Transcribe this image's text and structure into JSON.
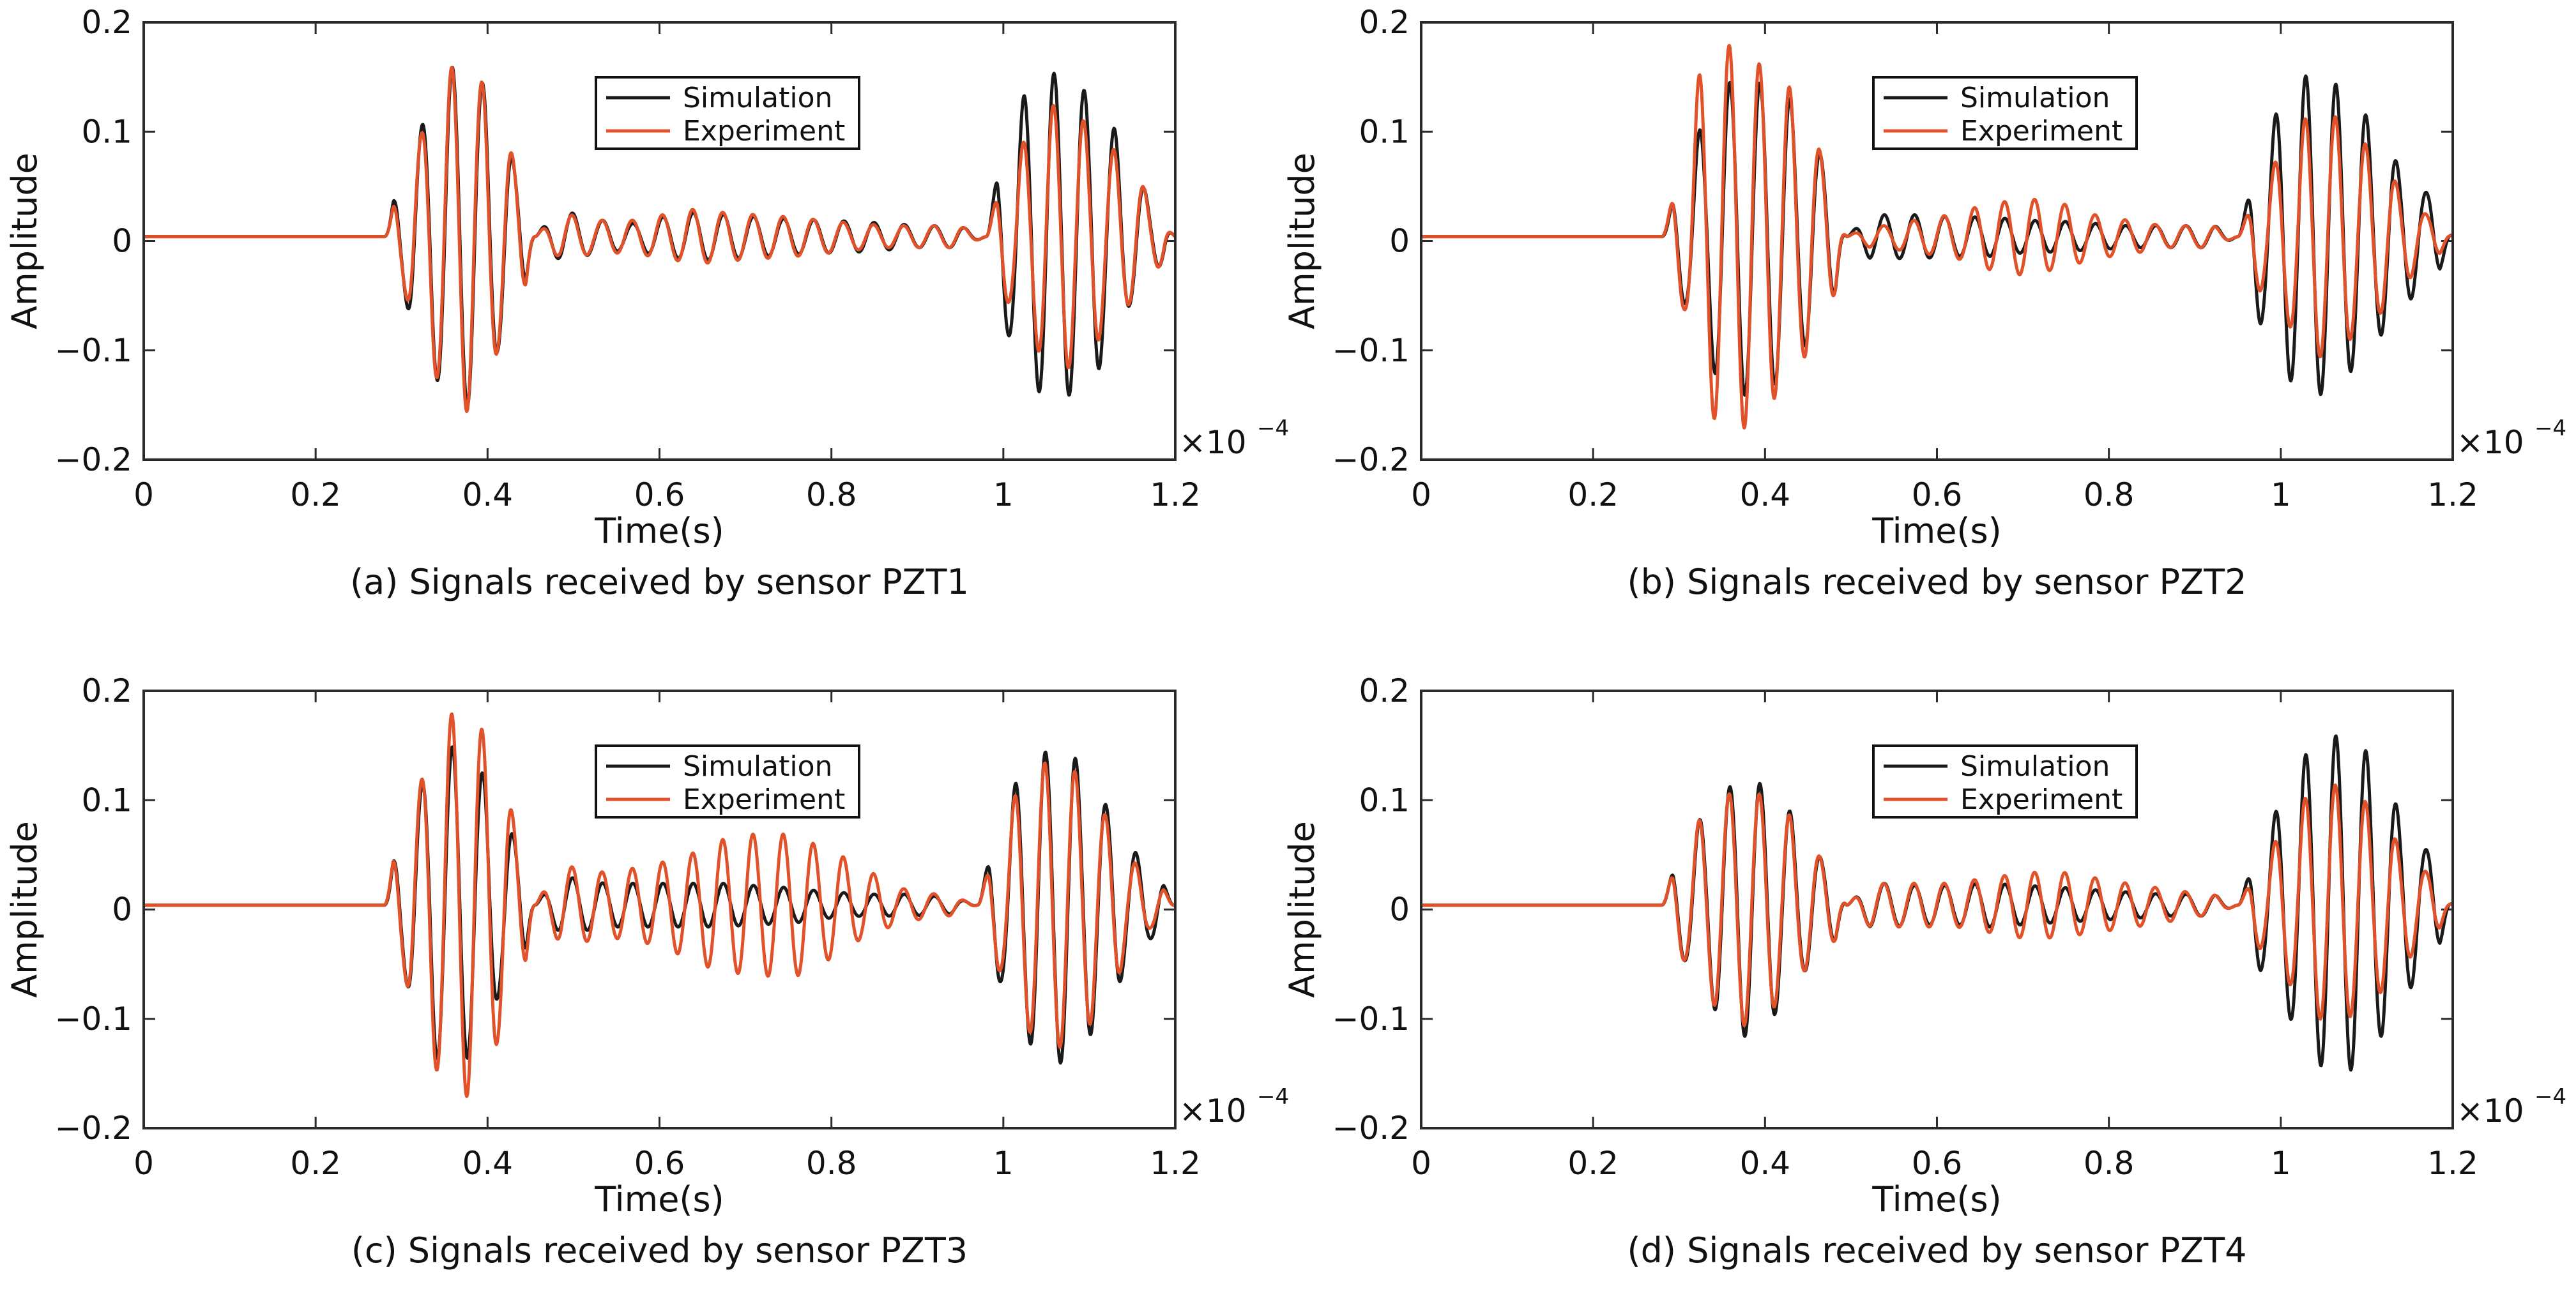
{
  "figure": {
    "colors": {
      "simulation": "#1a1a1a",
      "experiment": "#e2522a",
      "axis": "#2a2a2a"
    },
    "x_multiplier": {
      "base": "×10",
      "exponent": "−4"
    }
  },
  "chart_data": [
    {
      "type": "line",
      "panel": "a",
      "title": "(a) Signals received by sensor PZT1",
      "xlabel": "Time(s)",
      "ylabel": "Amplitude",
      "xlim": [
        0,
        1.2
      ],
      "ylim": [
        -0.2,
        0.2
      ],
      "xticks": [
        "0",
        "0.2",
        "0.4",
        "0.6",
        "0.8",
        "1",
        "1.2"
      ],
      "yticks": [
        "−0.2",
        "−0.1",
        "0",
        "0.1",
        "0.2"
      ],
      "legend": [
        "Simulation",
        "Experiment"
      ],
      "legend_position": "top-center",
      "series": [
        {
          "name": "Simulation",
          "packets": [
            {
              "t0": 0.28,
              "t1": 0.455,
              "amps": [
                0.014,
                0.05,
                0.097,
                0.13,
                0.155,
                0.155,
                0.14,
                0.1,
                0.06,
                0.02
              ]
            },
            {
              "t0": 0.455,
              "t1": 0.98,
              "amps": [
                0.03,
                0.022,
                0.015,
                0.012,
                0.018,
                0.022,
                0.02,
                0.018,
                0.016,
                0.015,
                0.014,
                0.012,
                0.01,
                0.01,
                0.01
              ]
            },
            {
              "t0": 0.98,
              "t1": 1.2,
              "amps": [
                0.04,
                0.09,
                0.133,
                0.15,
                0.145,
                0.13,
                0.1,
                0.06,
                0.03,
                0.01
              ]
            }
          ]
        },
        {
          "name": "Experiment",
          "packets": [
            {
              "t0": 0.28,
              "t1": 0.455,
              "amps": [
                0.012,
                0.045,
                0.09,
                0.128,
                0.155,
                0.16,
                0.14,
                0.1,
                0.065,
                0.02
              ]
            },
            {
              "t0": 0.455,
              "t1": 0.98,
              "amps": [
                0.025,
                0.02,
                0.015,
                0.015,
                0.02,
                0.025,
                0.022,
                0.02,
                0.018,
                0.015,
                0.012,
                0.01,
                0.01,
                0.01,
                0.01
              ]
            },
            {
              "t0": 0.98,
              "t1": 1.2,
              "amps": [
                0.03,
                0.06,
                0.09,
                0.12,
                0.12,
                0.1,
                0.08,
                0.06,
                0.03,
                0.01
              ]
            }
          ]
        }
      ]
    },
    {
      "type": "line",
      "panel": "b",
      "title": "(b) Signals received by sensor PZT2",
      "xlabel": "Time(s)",
      "ylabel": "Amplitude",
      "xlim": [
        0,
        1.2
      ],
      "ylim": [
        -0.2,
        0.2
      ],
      "xticks": [
        "0",
        "0.2",
        "0.4",
        "0.6",
        "0.8",
        "1",
        "1.2"
      ],
      "yticks": [
        "−0.2",
        "−0.1",
        "0",
        "0.1",
        "0.2"
      ],
      "legend": [
        "Simulation",
        "Experiment"
      ],
      "legend_position": "top-center",
      "series": [
        {
          "name": "Simulation",
          "packets": [
            {
              "t0": 0.28,
              "t1": 0.495,
              "amps": [
                0.015,
                0.06,
                0.1,
                0.14,
                0.145,
                0.14,
                0.13,
                0.1,
                0.07,
                0.02
              ]
            },
            {
              "t0": 0.495,
              "t1": 0.95,
              "amps": [
                0.02,
                0.02,
                0.02,
                0.018,
                0.018,
                0.015,
                0.014,
                0.012,
                0.01,
                0.01,
                0.01,
                0.01
              ]
            },
            {
              "t0": 0.95,
              "t1": 1.2,
              "amps": [
                0.03,
                0.08,
                0.13,
                0.148,
                0.14,
                0.12,
                0.09,
                0.06,
                0.04,
                0.02
              ]
            }
          ]
        },
        {
          "name": "Experiment",
          "packets": [
            {
              "t0": 0.28,
              "t1": 0.495,
              "amps": [
                0.02,
                0.065,
                0.155,
                0.175,
                0.175,
                0.155,
                0.14,
                0.11,
                0.07,
                0.02
              ]
            },
            {
              "t0": 0.495,
              "t1": 0.95,
              "amps": [
                0.01,
                0.01,
                0.015,
                0.02,
                0.03,
                0.035,
                0.03,
                0.02,
                0.015,
                0.01,
                0.01,
                0.008
              ]
            },
            {
              "t0": 0.95,
              "t1": 1.2,
              "amps": [
                0.02,
                0.05,
                0.08,
                0.11,
                0.11,
                0.09,
                0.07,
                0.04,
                0.02,
                0.01
              ]
            }
          ]
        }
      ]
    },
    {
      "type": "line",
      "panel": "c",
      "title": "(c) Signals received by sensor PZT3",
      "xlabel": "Time(s)",
      "ylabel": "Amplitude",
      "xlim": [
        0,
        1.2
      ],
      "ylim": [
        -0.2,
        0.2
      ],
      "xticks": [
        "0",
        "0.2",
        "0.4",
        "0.6",
        "0.8",
        "1",
        "1.2"
      ],
      "yticks": [
        "−0.2",
        "−0.1",
        "0",
        "0.1",
        "0.2"
      ],
      "legend": [
        "Simulation",
        "Experiment"
      ],
      "legend_position": "top-center",
      "series": [
        {
          "name": "Simulation",
          "packets": [
            {
              "t0": 0.28,
              "t1": 0.455,
              "amps": [
                0.02,
                0.06,
                0.105,
                0.14,
                0.145,
                0.14,
                0.12,
                0.08,
                0.06,
                0.02
              ]
            },
            {
              "t0": 0.455,
              "t1": 0.97,
              "amps": [
                0.03,
                0.025,
                0.02,
                0.02,
                0.02,
                0.02,
                0.018,
                0.016,
                0.012,
                0.01,
                0.01,
                0.008,
                0.008
              ]
            },
            {
              "t0": 0.97,
              "t1": 1.2,
              "amps": [
                0.03,
                0.07,
                0.12,
                0.14,
                0.145,
                0.12,
                0.09,
                0.05,
                0.03,
                0.01
              ]
            }
          ]
        },
        {
          "name": "Experiment",
          "packets": [
            {
              "t0": 0.28,
              "t1": 0.455,
              "amps": [
                0.025,
                0.06,
                0.11,
                0.15,
                0.175,
                0.175,
                0.16,
                0.12,
                0.07,
                0.03
              ]
            },
            {
              "t0": 0.455,
              "t1": 0.97,
              "amps": [
                0.04,
                0.035,
                0.03,
                0.035,
                0.045,
                0.06,
                0.065,
                0.065,
                0.05,
                0.03,
                0.015,
                0.01,
                0.008
              ]
            },
            {
              "t0": 0.97,
              "t1": 1.2,
              "amps": [
                0.025,
                0.06,
                0.11,
                0.13,
                0.13,
                0.11,
                0.08,
                0.04,
                0.02,
                0.01
              ]
            }
          ]
        }
      ]
    },
    {
      "type": "line",
      "panel": "d",
      "title": "(d) Signals received by sensor PZT4",
      "xlabel": "Time(s)",
      "ylabel": "Amplitude",
      "xlim": [
        0,
        1.2
      ],
      "ylim": [
        -0.2,
        0.2
      ],
      "xticks": [
        "0",
        "0.2",
        "0.4",
        "0.6",
        "0.8",
        "1",
        "1.2"
      ],
      "yticks": [
        "−0.2",
        "−0.1",
        "0",
        "0.1",
        "0.2"
      ],
      "legend": [
        "Simulation",
        "Experiment"
      ],
      "legend_position": "top-center",
      "series": [
        {
          "name": "Simulation",
          "packets": [
            {
              "t0": 0.28,
              "t1": 0.495,
              "amps": [
                0.02,
                0.05,
                0.08,
                0.105,
                0.12,
                0.11,
                0.09,
                0.06,
                0.04,
                0.02
              ]
            },
            {
              "t0": 0.495,
              "t1": 0.95,
              "amps": [
                0.02,
                0.02,
                0.018,
                0.018,
                0.02,
                0.018,
                0.016,
                0.014,
                0.012,
                0.01,
                0.01,
                0.008
              ]
            },
            {
              "t0": 0.95,
              "t1": 1.2,
              "amps": [
                0.02,
                0.06,
                0.1,
                0.14,
                0.155,
                0.15,
                0.12,
                0.08,
                0.05,
                0.02
              ]
            }
          ]
        },
        {
          "name": "Experiment",
          "packets": [
            {
              "t0": 0.28,
              "t1": 0.495,
              "amps": [
                0.02,
                0.05,
                0.08,
                0.1,
                0.11,
                0.1,
                0.085,
                0.06,
                0.04,
                0.02
              ]
            },
            {
              "t0": 0.495,
              "t1": 0.95,
              "amps": [
                0.02,
                0.02,
                0.02,
                0.02,
                0.025,
                0.03,
                0.03,
                0.025,
                0.02,
                0.015,
                0.01,
                0.008
              ]
            },
            {
              "t0": 0.95,
              "t1": 1.2,
              "amps": [
                0.015,
                0.04,
                0.07,
                0.1,
                0.11,
                0.1,
                0.08,
                0.05,
                0.03,
                0.01
              ]
            }
          ]
        }
      ]
    }
  ]
}
